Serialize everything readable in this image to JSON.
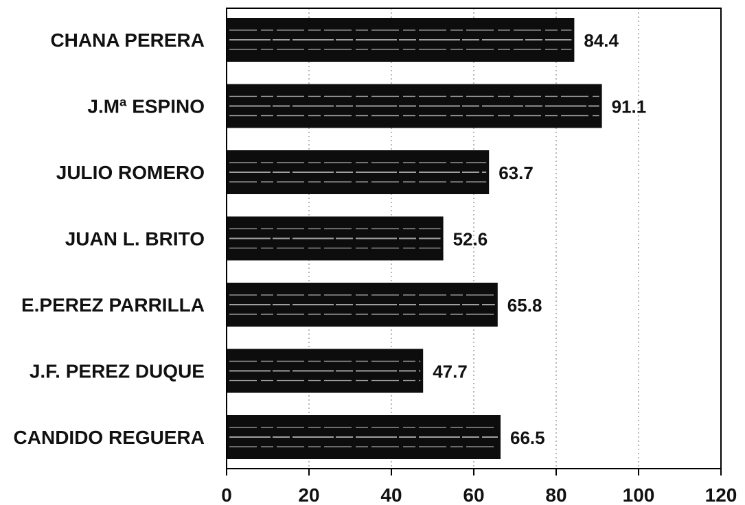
{
  "chart_data": {
    "type": "bar",
    "orientation": "horizontal",
    "categories": [
      "CHANA PERERA",
      "J.Mª ESPINO",
      "JULIO ROMERO",
      "JUAN L. BRITO",
      "E.PEREZ PARRILLA",
      "J.F. PEREZ DUQUE",
      "CANDIDO REGUERA"
    ],
    "values": [
      84.4,
      91.1,
      63.7,
      52.6,
      65.8,
      47.7,
      66.5
    ],
    "value_labels": [
      "84.4",
      "91.1",
      "63.7",
      "52.6",
      "65.8",
      "47.7",
      "66.5"
    ],
    "xlim": [
      0,
      120
    ],
    "x_ticks": [
      0,
      20,
      40,
      60,
      80,
      100,
      120
    ],
    "grid": "vertical dotted",
    "legend": "none",
    "title": "",
    "xlabel": "",
    "ylabel": "",
    "colors": {
      "bar": "#0d0d0d",
      "bar_streak": "#d0d0d0",
      "frame": "#000000",
      "grid": "#888888"
    }
  }
}
